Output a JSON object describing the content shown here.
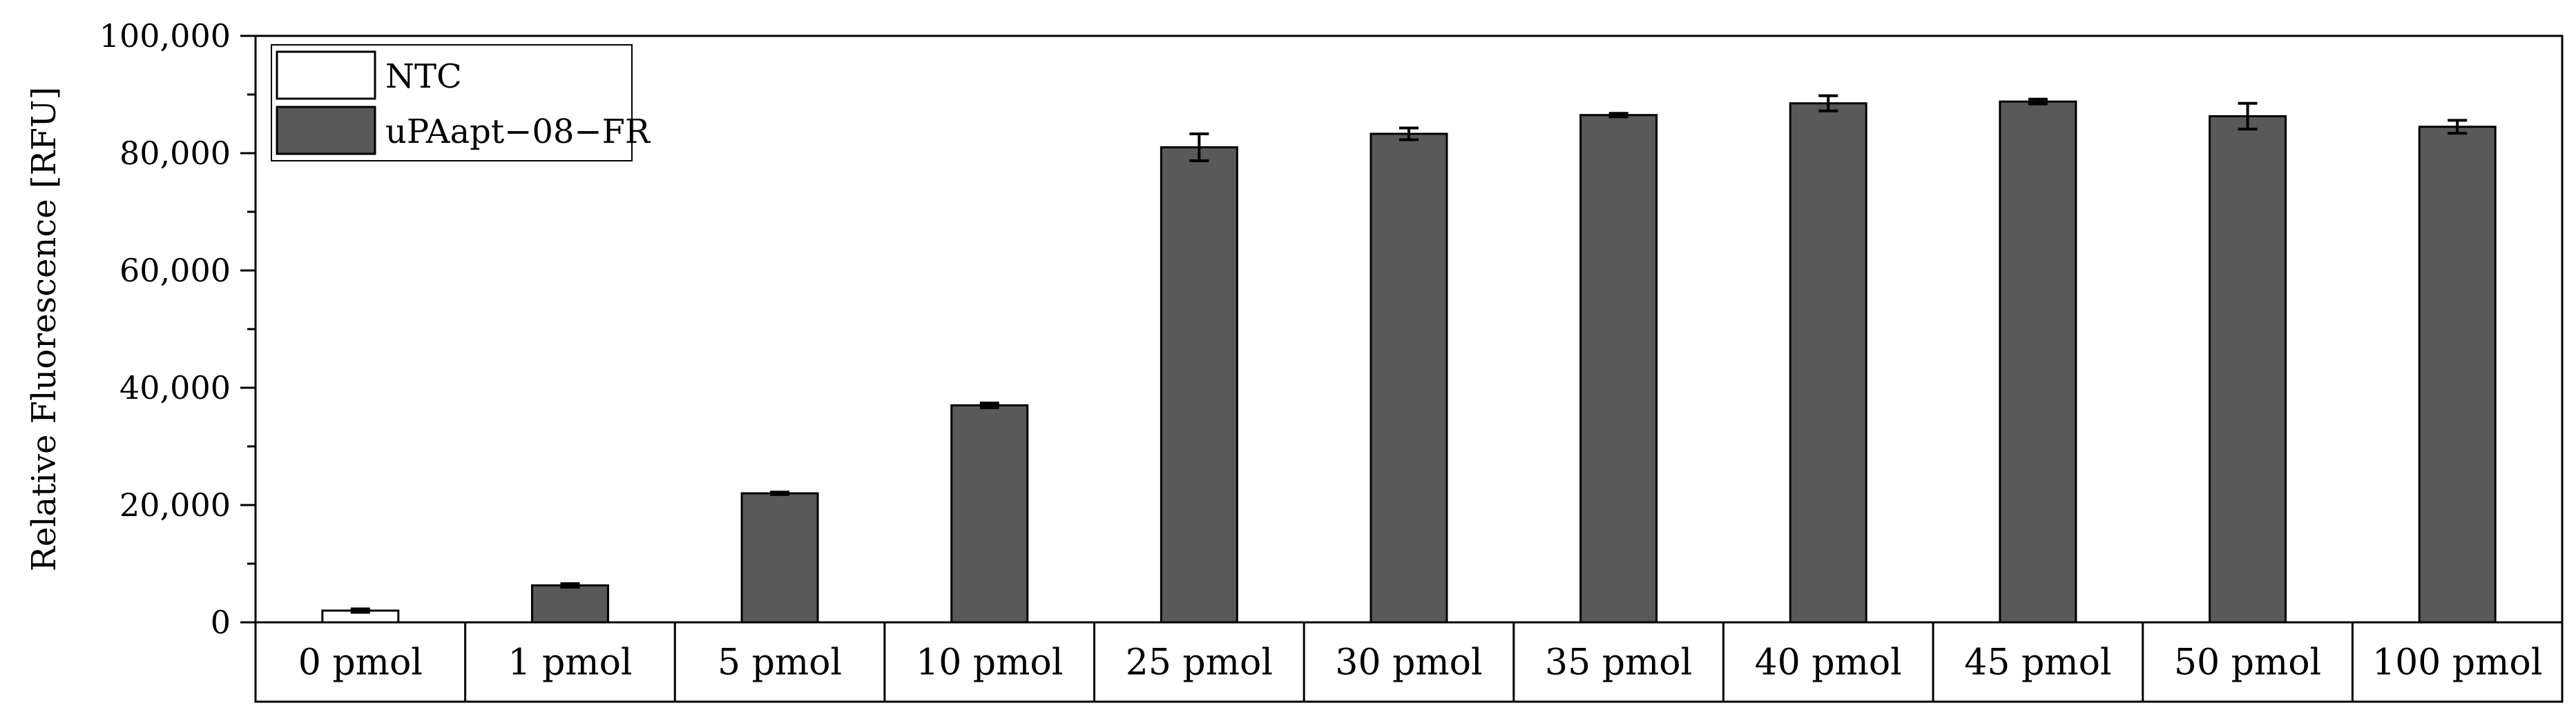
{
  "chart_data": {
    "type": "bar",
    "title": "",
    "xlabel": "",
    "ylabel": "Relative Fluorescence [RFU]",
    "ylim": [
      0,
      100000
    ],
    "yticks": [
      0,
      20000,
      40000,
      60000,
      80000,
      100000
    ],
    "ytick_labels": [
      "0",
      "20,000",
      "40,000",
      "60,000",
      "80,000",
      "100,000"
    ],
    "categories": [
      "0 pmol",
      "1 pmol",
      "5 pmol",
      "10 pmol",
      "25 pmol",
      "30 pmol",
      "35 pmol",
      "40 pmol",
      "45 pmol",
      "50 pmol",
      "100 pmol"
    ],
    "series": [
      {
        "name": "NTC",
        "color": "#ffffff",
        "values": [
          2000,
          null,
          null,
          null,
          null,
          null,
          null,
          null,
          null,
          null,
          null
        ],
        "errors": [
          300,
          null,
          null,
          null,
          null,
          null,
          null,
          null,
          null,
          null,
          null
        ]
      },
      {
        "name": "uPAapt−08−FR",
        "color": "#595959",
        "values": [
          null,
          6300,
          22000,
          37000,
          81000,
          83300,
          86500,
          88500,
          88800,
          86300,
          84500
        ],
        "errors": [
          null,
          300,
          200,
          400,
          2300,
          1000,
          300,
          1300,
          400,
          2200,
          1100
        ]
      }
    ],
    "legend": {
      "placement": "top-left"
    },
    "grid": false
  }
}
